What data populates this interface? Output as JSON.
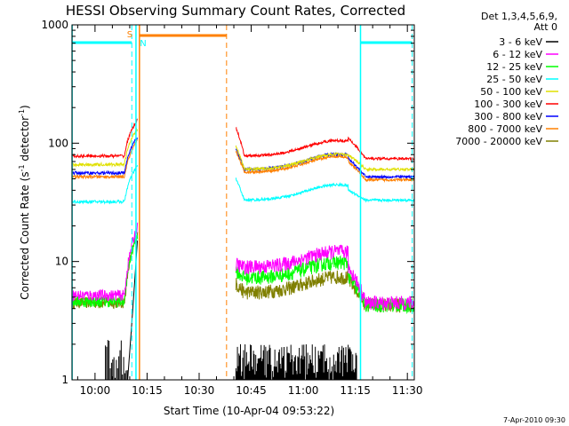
{
  "chart_data": {
    "type": "line",
    "title": "HESSI Observing Summary Count Rates, Corrected",
    "xlabel": "Start Time (10-Apr-04 09:53:22)",
    "ylabel_main": "Corrected Count Rate (s",
    "ylabel_sup1": "-1",
    "ylabel_mid": " detector",
    "ylabel_sup2": "-1",
    "ylabel_end": ")",
    "y_scale": "log",
    "ylim": [
      1,
      1000
    ],
    "xlim_minutes": [
      9.53,
      11.53
    ],
    "x_range_minutes": [
      593.37,
      692.0
    ],
    "y_ticks": [
      {
        "value": 1,
        "label": "1"
      },
      {
        "value": 10,
        "label": "10"
      },
      {
        "value": 100,
        "label": "100"
      },
      {
        "value": 1000,
        "label": "1000"
      }
    ],
    "x_ticks": [
      {
        "minute": 600,
        "label": "10:00"
      },
      {
        "minute": 615,
        "label": "10:15"
      },
      {
        "minute": 630,
        "label": "10:30"
      },
      {
        "minute": 645,
        "label": "10:45"
      },
      {
        "minute": 660,
        "label": "11:00"
      },
      {
        "minute": 675,
        "label": "11:15"
      },
      {
        "minute": 690,
        "label": "11:30"
      }
    ],
    "legend_header": [
      "Det 1,3,4,5,6,9,",
      "Att 0"
    ],
    "legend_placement": "right",
    "series": [
      {
        "name": "3 - 6 keV",
        "color": "#000000"
      },
      {
        "name": "6 - 12 keV",
        "color": "#ff00ff"
      },
      {
        "name": "12 - 25 keV",
        "color": "#00ff00"
      },
      {
        "name": "25 - 50 keV",
        "color": "#00ffff"
      },
      {
        "name": "50 - 100 keV",
        "color": "#e0e000"
      },
      {
        "name": "100 - 300 keV",
        "color": "#ff0000"
      },
      {
        "name": "300 - 800 keV",
        "color": "#0000ff"
      },
      {
        "name": "800 - 7000 keV",
        "color": "#ff8000"
      },
      {
        "name": "7000 - 20000 keV",
        "color": "#808000"
      }
    ],
    "flags": {
      "saa_label": "S",
      "night_label": "N",
      "saa_color": "#ff8000",
      "night_color": "#00ffff"
    },
    "timestamp": "7-Apr-2010 09:30"
  }
}
